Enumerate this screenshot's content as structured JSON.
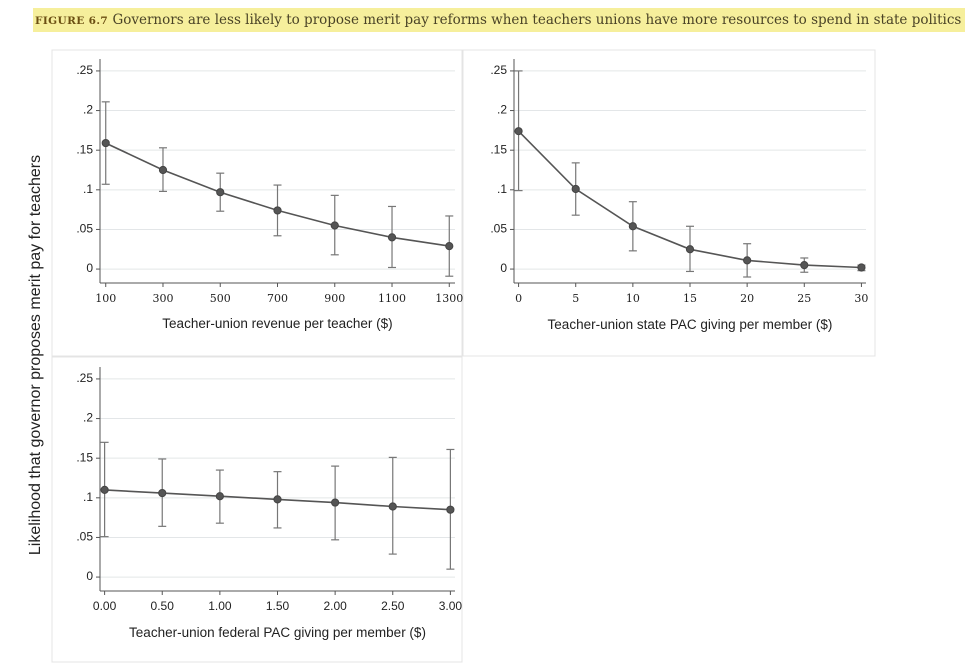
{
  "caption": {
    "figure_label": "FIGURE 6.7",
    "text": "Governors are less likely to propose merit pay reforms when teachers unions have more resources to spend in state politics"
  },
  "shared_ylabel": "Likelihood that governor proposes merit pay for teachers",
  "colors": {
    "caption_highlight": "#f6ef9c",
    "series": "#555555",
    "grid": "#e3e6e8"
  },
  "chart_data": [
    {
      "type": "line",
      "xlabel": "Teacher-union revenue per teacher ($)",
      "x_ticks": [
        "100",
        "300",
        "500",
        "700",
        "900",
        "1100",
        "1300"
      ],
      "x_tick_values": [
        100,
        300,
        500,
        700,
        900,
        1100,
        1300
      ],
      "xlim": [
        80,
        1320
      ],
      "y_ticks": [
        "0",
        ".05",
        ".1",
        ".15",
        ".2",
        ".25"
      ],
      "y_tick_values": [
        0,
        0.05,
        0.1,
        0.15,
        0.2,
        0.25
      ],
      "ylim": [
        -0.01,
        0.26
      ],
      "grid": true,
      "points": [
        {
          "x": 100,
          "y": 0.159,
          "lo": 0.107,
          "hi": 0.211
        },
        {
          "x": 300,
          "y": 0.125,
          "lo": 0.098,
          "hi": 0.153
        },
        {
          "x": 500,
          "y": 0.097,
          "lo": 0.073,
          "hi": 0.121
        },
        {
          "x": 700,
          "y": 0.074,
          "lo": 0.042,
          "hi": 0.106
        },
        {
          "x": 900,
          "y": 0.055,
          "lo": 0.018,
          "hi": 0.093
        },
        {
          "x": 1100,
          "y": 0.04,
          "lo": 0.002,
          "hi": 0.079
        },
        {
          "x": 1300,
          "y": 0.029,
          "lo": -0.009,
          "hi": 0.067
        }
      ]
    },
    {
      "type": "line",
      "xlabel": "Teacher-union state PAC giving per member ($)",
      "x_ticks": [
        "0",
        "5",
        "10",
        "15",
        "20",
        "25",
        "30"
      ],
      "x_tick_values": [
        0,
        5,
        10,
        15,
        20,
        25,
        30
      ],
      "xlim": [
        -0.4,
        30.4
      ],
      "y_ticks": [
        "0",
        ".05",
        ".1",
        ".15",
        ".2",
        ".25"
      ],
      "y_tick_values": [
        0,
        0.05,
        0.1,
        0.15,
        0.2,
        0.25
      ],
      "ylim": [
        -0.01,
        0.26
      ],
      "grid": true,
      "points": [
        {
          "x": 0,
          "y": 0.174,
          "lo": 0.099,
          "hi": 0.25
        },
        {
          "x": 5,
          "y": 0.101,
          "lo": 0.068,
          "hi": 0.134
        },
        {
          "x": 10,
          "y": 0.054,
          "lo": 0.023,
          "hi": 0.085
        },
        {
          "x": 15,
          "y": 0.025,
          "lo": -0.003,
          "hi": 0.054
        },
        {
          "x": 20,
          "y": 0.011,
          "lo": -0.01,
          "hi": 0.032
        },
        {
          "x": 25,
          "y": 0.005,
          "lo": -0.004,
          "hi": 0.014
        },
        {
          "x": 30,
          "y": 0.002,
          "lo": -0.002,
          "hi": 0.005
        }
      ]
    },
    {
      "type": "line",
      "xlabel": "Teacher-union federal PAC giving per member ($)",
      "x_ticks": [
        "0.00",
        "0.50",
        "1.00",
        "1.50",
        "2.00",
        "2.50",
        "3.00"
      ],
      "x_tick_values": [
        0,
        0.5,
        1,
        1.5,
        2,
        2.5,
        3
      ],
      "xlim": [
        -0.04,
        3.04
      ],
      "y_ticks": [
        "0",
        ".05",
        ".1",
        ".15",
        ".2",
        ".25"
      ],
      "y_tick_values": [
        0,
        0.05,
        0.1,
        0.15,
        0.2,
        0.25
      ],
      "ylim": [
        -0.01,
        0.26
      ],
      "grid": true,
      "points": [
        {
          "x": 0.0,
          "y": 0.11,
          "lo": 0.051,
          "hi": 0.17
        },
        {
          "x": 0.5,
          "y": 0.106,
          "lo": 0.064,
          "hi": 0.149
        },
        {
          "x": 1.0,
          "y": 0.102,
          "lo": 0.068,
          "hi": 0.135
        },
        {
          "x": 1.5,
          "y": 0.098,
          "lo": 0.062,
          "hi": 0.133
        },
        {
          "x": 2.0,
          "y": 0.094,
          "lo": 0.047,
          "hi": 0.14
        },
        {
          "x": 2.5,
          "y": 0.089,
          "lo": 0.029,
          "hi": 0.151
        },
        {
          "x": 3.0,
          "y": 0.085,
          "lo": 0.01,
          "hi": 0.161
        }
      ]
    }
  ]
}
